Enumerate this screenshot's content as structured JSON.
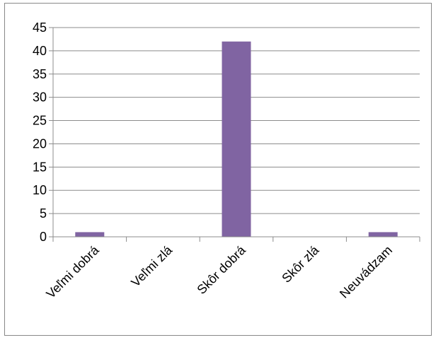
{
  "chart_data": {
    "type": "bar",
    "categories": [
      "Veľmi dobrá",
      "Veľmi zlá",
      "Skôr dobrá",
      "Skôr zlá",
      "Neuvádzam"
    ],
    "values": [
      1,
      0,
      42,
      0,
      1
    ],
    "title": "",
    "xlabel": "",
    "ylabel": "",
    "ylim": [
      0,
      45
    ],
    "yticks": [
      0,
      5,
      10,
      15,
      20,
      25,
      30,
      35,
      40,
      45
    ],
    "grid": true,
    "legend": "none",
    "bar_color": "#8064A2",
    "grid_color": "#8C8C8C",
    "axis_color": "#8C8C8C"
  }
}
